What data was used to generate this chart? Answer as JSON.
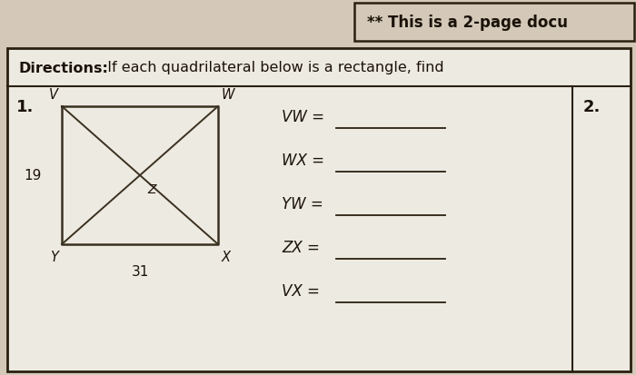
{
  "page_bg": "#d4c9b8",
  "content_bg": "#e8e3d8",
  "white_area": "#edeae2",
  "header_text": "** This is a 2-page docu",
  "directions_bold": "Directions:",
  "directions_rest": "  If each quadrilateral below is a rectangle, find",
  "problem1": "1.",
  "problem2": "2.",
  "label_V": "V",
  "label_W": "W",
  "label_X": "X",
  "label_Y": "Y",
  "label_Z": "Z",
  "num_19": "19",
  "num_31": "31",
  "equations": [
    "VW =",
    "WX =",
    "YW =",
    "ZX =",
    "VX ="
  ],
  "text_color": "#1a1208",
  "line_color": "#2a2010",
  "rect_color": "#3a3020"
}
